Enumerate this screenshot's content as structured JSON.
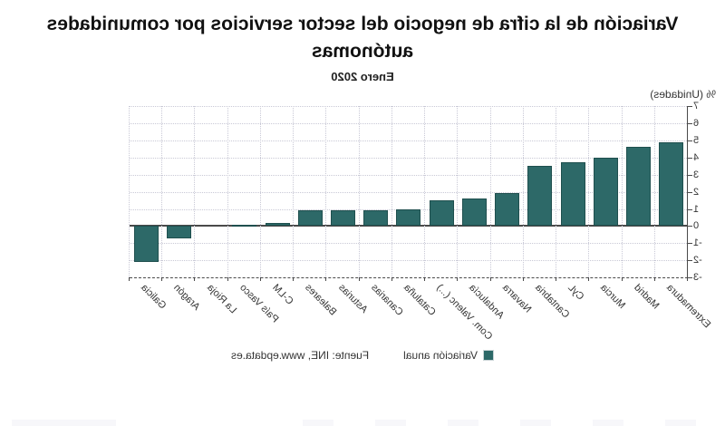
{
  "title_lines": [
    "Variación de la cifra de negocio del sector servicios por comunidades",
    "autónomas"
  ],
  "title_full": "Variación de la cifra de negocio del sector servicios por comunidades autónomas",
  "subtitle": "Enero 2020",
  "y_axis_label": "% (Unidades)",
  "legend": {
    "series_label": "Variación anual",
    "source_label": "Fuente: INE, www.epdata.es"
  },
  "presentation": {
    "mirrored_horizontally": true,
    "bar_color": "#2d6968",
    "bar_border_color": "#1f4f4e",
    "grid_color": "#c9c9d6",
    "axis_color": "#4a4a4a",
    "text_color": "#333333",
    "title_color": "#111111"
  },
  "chart_data": {
    "type": "bar",
    "title": "Variación de la cifra de negocio del sector servicios por comunidades autónomas",
    "subtitle": "Enero 2020",
    "xlabel": "",
    "ylabel": "% (Unidades)",
    "ylim": [
      -3,
      7
    ],
    "yticks": [
      7,
      6,
      5,
      4,
      3,
      2,
      1,
      0,
      -1,
      -2,
      -3
    ],
    "grid": true,
    "legend_position": "bottom",
    "series_name": "Variación anual",
    "categories": [
      "Extremadura",
      "Madrid",
      "Murcia",
      "CyL",
      "Cantabria",
      "Navarra",
      "Andalucía",
      "Com. Valenc (...)",
      "Cataluña",
      "Canarias",
      "Asturias",
      "Baleares",
      "C-LM",
      "País Vasco",
      "La Rioja",
      "Aragón",
      "Galicia"
    ],
    "values": [
      4.9,
      4.6,
      4.0,
      3.7,
      3.5,
      1.9,
      1.6,
      1.5,
      1.0,
      0.9,
      0.9,
      0.9,
      0.2,
      0.1,
      0.0,
      -0.7,
      -2.1
    ],
    "source": "Fuente: INE, www.epdata.es",
    "note": "Displayed image is horizontally mirrored; logical order is descending from Extremadura (leftmost before mirroring)."
  }
}
